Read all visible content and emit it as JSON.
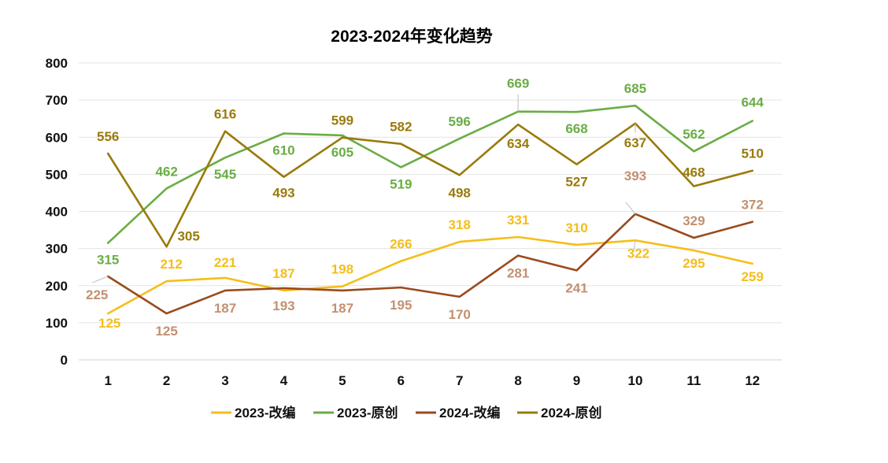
{
  "chart_data": {
    "type": "line",
    "title": "2023-2024年变化趋势",
    "xlabel": "",
    "ylabel": "",
    "categories": [
      "1",
      "2",
      "3",
      "4",
      "5",
      "6",
      "7",
      "8",
      "9",
      "10",
      "11",
      "12"
    ],
    "ylim": [
      0,
      800
    ],
    "yticks": [
      "0",
      "100",
      "200",
      "300",
      "400",
      "500",
      "600",
      "700",
      "800"
    ],
    "grid": true,
    "legend_position": "bottom",
    "series": [
      {
        "name": "2023-改编",
        "color": "#F5BE1A",
        "label_color": "#F5BE1A",
        "values": [
          125,
          212,
          221,
          187,
          198,
          266,
          318,
          331,
          310,
          322,
          295,
          259
        ]
      },
      {
        "name": "2023-原创",
        "color": "#6AAD45",
        "label_color": "#6AAD45",
        "values": [
          315,
          462,
          545,
          610,
          605,
          519,
          596,
          669,
          668,
          685,
          562,
          644
        ]
      },
      {
        "name": "2024-改编",
        "color": "#9A4A1C",
        "label_color": "#C39070",
        "values": [
          225,
          125,
          187,
          193,
          187,
          195,
          170,
          281,
          241,
          393,
          329,
          372
        ]
      },
      {
        "name": "2024-原创",
        "color": "#9A7A0B",
        "label_color": "#9A7A0B",
        "values": [
          556,
          305,
          616,
          493,
          599,
          582,
          498,
          634,
          527,
          637,
          468,
          510
        ]
      }
    ]
  }
}
